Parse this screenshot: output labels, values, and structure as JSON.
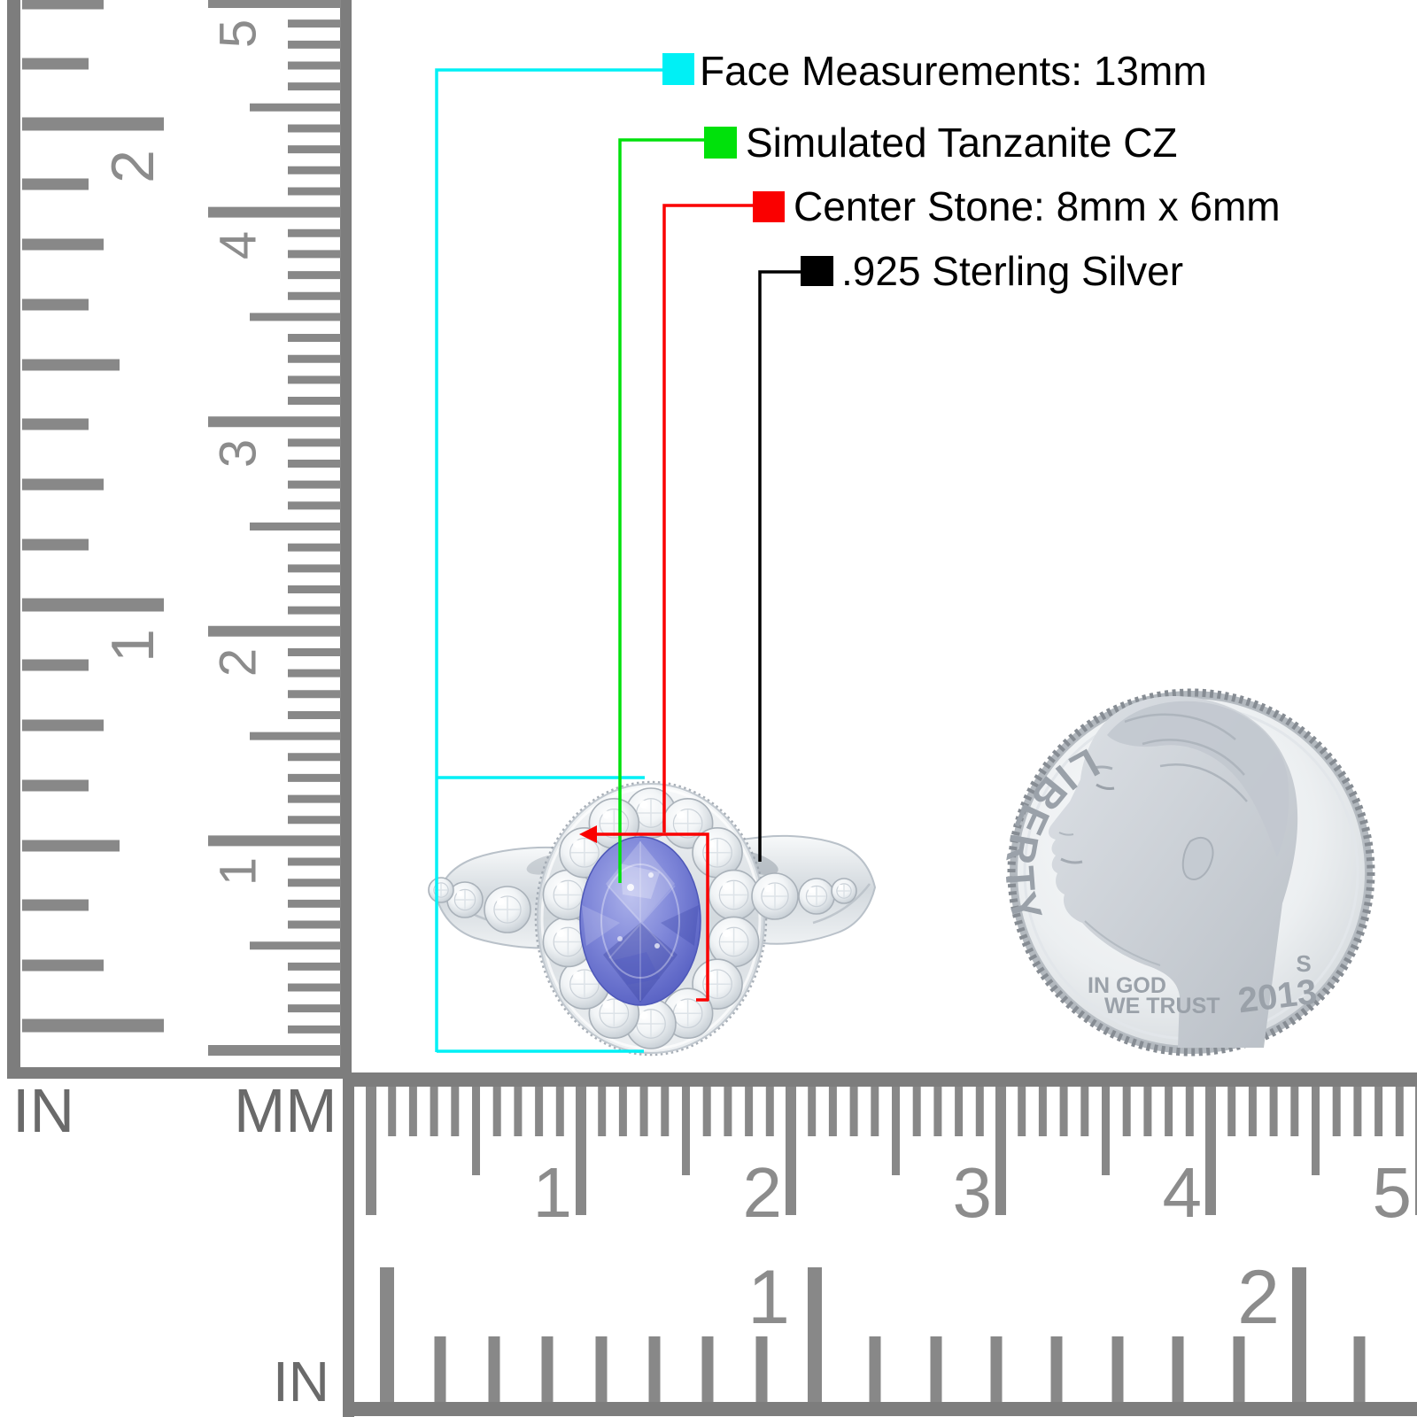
{
  "callouts": [
    {
      "label": "Face Measurements: 13mm",
      "color": "#00F0F5"
    },
    {
      "label": "Simulated Tanzanite CZ",
      "color": "#00E10B"
    },
    {
      "label": "Center Stone: 8mm x 6mm",
      "color": "#FA0000"
    },
    {
      "label": ".925 Sterling Silver",
      "color": "#000000"
    }
  ],
  "left_ruler": {
    "inch_unit_label": "IN",
    "mm_unit_label": "MM",
    "inch_numbers": [
      "2",
      "1"
    ],
    "mm_numbers": [
      "5",
      "4",
      "3",
      "2",
      "1"
    ]
  },
  "bottom_ruler": {
    "inch_unit_label": "IN",
    "mm_numbers": [
      "1",
      "2",
      "3",
      "4",
      "5"
    ],
    "inch_numbers": [
      "1",
      "2"
    ]
  },
  "coin": {
    "legend": "LIBERTY",
    "motto_line1": "IN GOD",
    "motto_line2": "WE TRUST",
    "mint_mark": "S",
    "year": "2013"
  },
  "ring": {
    "center_stone_color": "#7B83D8",
    "metal_color": "#DDE3E8"
  }
}
